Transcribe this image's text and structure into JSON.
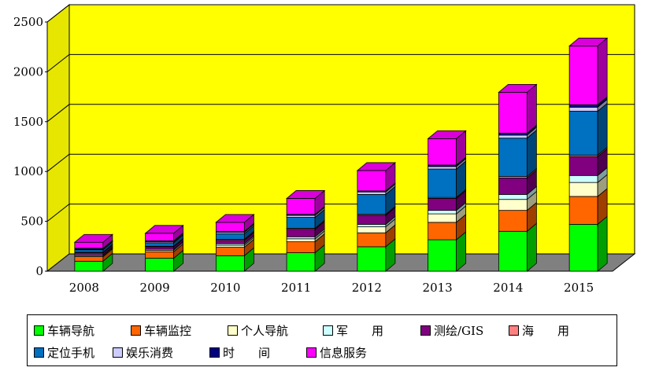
{
  "chart_data": {
    "type": "bar",
    "stacked": true,
    "style": "3d",
    "categories": [
      "2008",
      "2009",
      "2010",
      "2011",
      "2012",
      "2013",
      "2014",
      "2015"
    ],
    "y_ticks": [
      "0",
      "500",
      "1000",
      "1500",
      "2000",
      "2500"
    ],
    "ylim": [
      0,
      2500
    ],
    "grid": true,
    "legend_position": "bottom",
    "series": [
      {
        "name": "车辆导航",
        "color": "#00ff00",
        "values": [
          100,
          130,
          155,
          185,
          245,
          315,
          400,
          470
        ]
      },
      {
        "name": "车辆监控",
        "color": "#ff6600",
        "values": [
          45,
          65,
          85,
          110,
          140,
          175,
          210,
          280
        ]
      },
      {
        "name": "个人导航",
        "color": "#ffffcc",
        "values": [
          10,
          15,
          20,
          30,
          60,
          85,
          110,
          140
        ]
      },
      {
        "name": "军　　用",
        "color": "#ccffff",
        "values": [
          10,
          10,
          15,
          20,
          25,
          35,
          50,
          70
        ]
      },
      {
        "name": "测绘/GIS",
        "color": "#800080",
        "values": [
          20,
          25,
          35,
          75,
          90,
          120,
          165,
          190
        ]
      },
      {
        "name": "海　　用",
        "color": "#ff8080",
        "values": [
          5,
          5,
          10,
          10,
          10,
          10,
          15,
          15
        ]
      },
      {
        "name": "定位手机",
        "color": "#0070c0",
        "values": [
          25,
          35,
          55,
          110,
          200,
          285,
          385,
          440
        ]
      },
      {
        "name": "娱乐消费",
        "color": "#ccccff",
        "values": [
          5,
          10,
          15,
          20,
          25,
          25,
          30,
          40
        ]
      },
      {
        "name": "时　　间",
        "color": "#000080",
        "values": [
          10,
          10,
          10,
          10,
          10,
          15,
          20,
          25
        ]
      },
      {
        "name": "信息服务",
        "color": "#ff00ff",
        "values": [
          60,
          75,
          90,
          160,
          205,
          265,
          410,
          590
        ]
      }
    ]
  }
}
